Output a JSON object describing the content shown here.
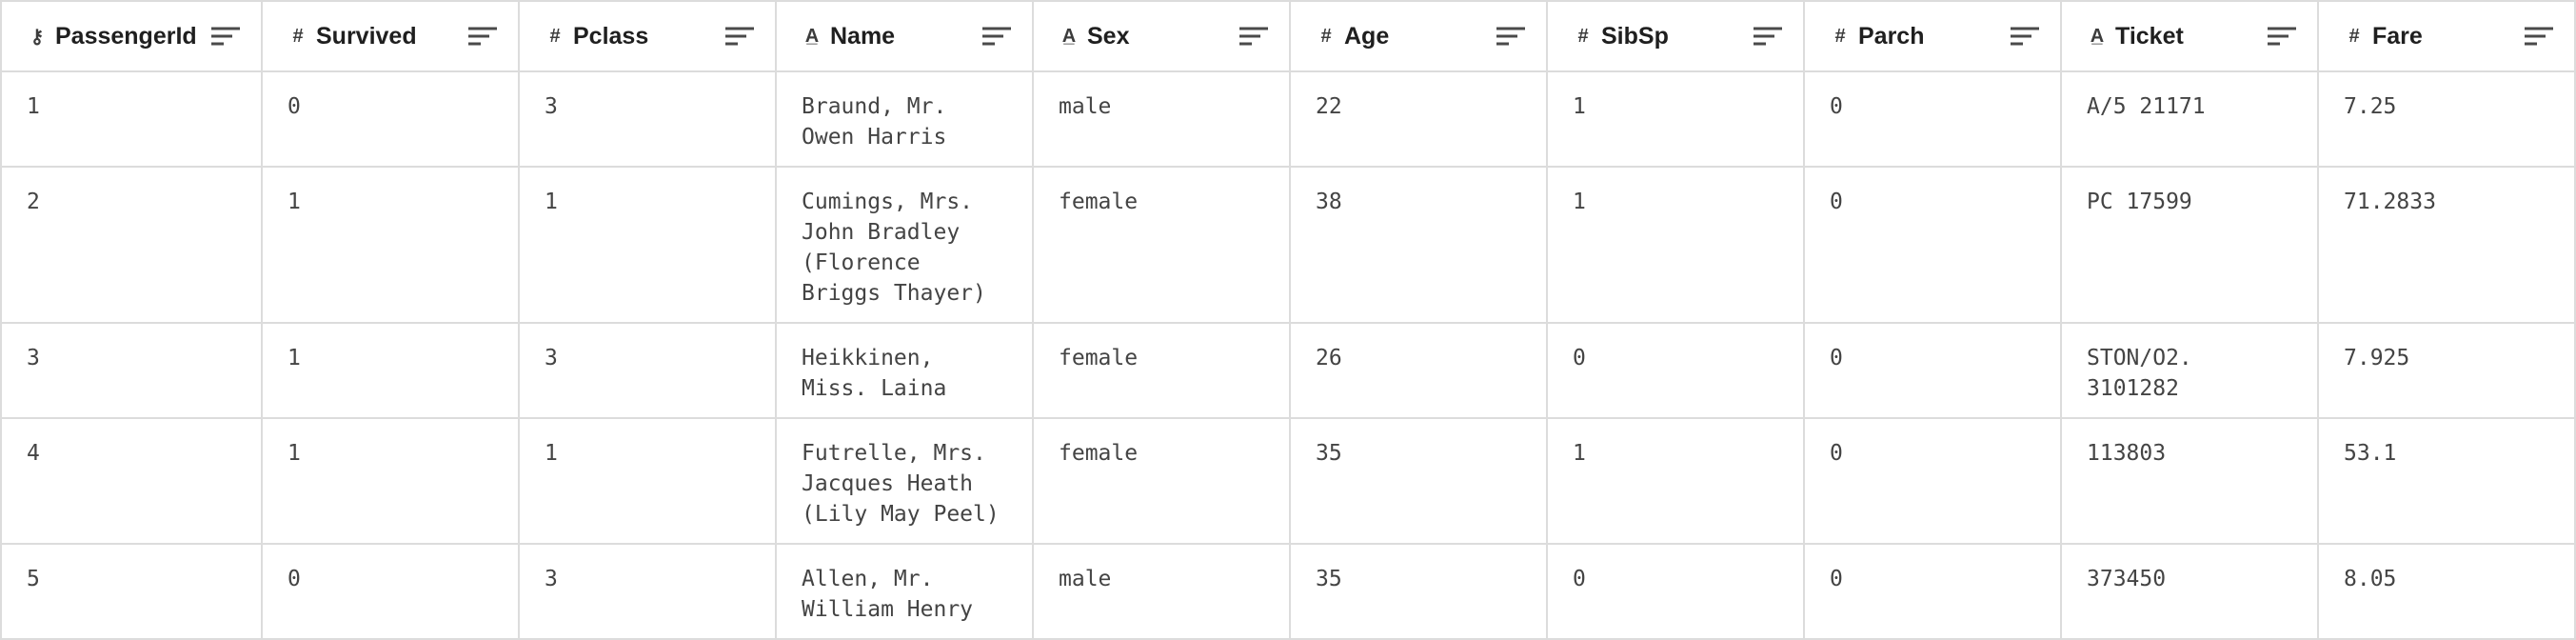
{
  "columns": [
    {
      "label": "PassengerId",
      "type_icon": "key-icon",
      "glyph": "⚷"
    },
    {
      "label": "Survived",
      "type_icon": "hash-icon",
      "glyph": "#"
    },
    {
      "label": "Pclass",
      "type_icon": "hash-icon",
      "glyph": "#"
    },
    {
      "label": "Name",
      "type_icon": "text-type-icon",
      "glyph": "A̲"
    },
    {
      "label": "Sex",
      "type_icon": "text-type-icon",
      "glyph": "A̲"
    },
    {
      "label": "Age",
      "type_icon": "hash-icon",
      "glyph": "#"
    },
    {
      "label": "SibSp",
      "type_icon": "hash-icon",
      "glyph": "#"
    },
    {
      "label": "Parch",
      "type_icon": "hash-icon",
      "glyph": "#"
    },
    {
      "label": "Ticket",
      "type_icon": "text-type-icon",
      "glyph": "A̲"
    },
    {
      "label": "Fare",
      "type_icon": "hash-icon",
      "glyph": "#"
    }
  ],
  "rows": [
    [
      "1",
      "0",
      "3",
      "Braund, Mr.\nOwen Harris",
      "male",
      "22",
      "1",
      "0",
      "A/5 21171",
      "7.25"
    ],
    [
      "2",
      "1",
      "1",
      "Cumings, Mrs.\nJohn Bradley\n(Florence\nBriggs Thayer)",
      "female",
      "38",
      "1",
      "0",
      "PC 17599",
      "71.2833"
    ],
    [
      "3",
      "1",
      "3",
      "Heikkinen,\nMiss. Laina",
      "female",
      "26",
      "0",
      "0",
      "STON/O2.\n3101282",
      "7.925"
    ],
    [
      "4",
      "1",
      "1",
      "Futrelle, Mrs.\nJacques Heath\n(Lily May Peel)",
      "female",
      "35",
      "1",
      "0",
      "113803",
      "53.1"
    ],
    [
      "5",
      "0",
      "3",
      "Allen, Mr.\nWilliam Henry",
      "male",
      "35",
      "0",
      "0",
      "373450",
      "8.05"
    ]
  ],
  "colors": {
    "border": "#dcdcdc",
    "header_text": "#1f1f1f",
    "cell_text": "#444444"
  }
}
